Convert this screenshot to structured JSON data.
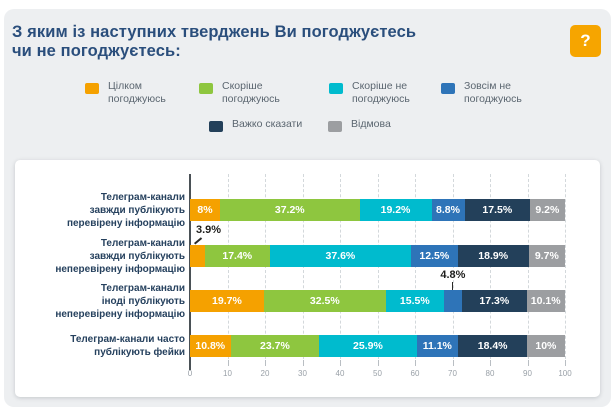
{
  "header": {
    "title": "З яким із наступних тверджень Ви погоджуєтесь\nчи не погоджуєтесь:",
    "help_badge": "?"
  },
  "colors": {
    "accent_orange": "#F5A100",
    "panel_bg": "#EDEFF1",
    "title_navy": "#2A4E7C"
  },
  "chart_data": {
    "type": "bar",
    "orientation": "horizontal",
    "stacked": true,
    "unit": "%",
    "xlim": [
      0,
      100
    ],
    "x_ticks": [
      0,
      10,
      20,
      30,
      40,
      50,
      60,
      70,
      80,
      90,
      100
    ],
    "grid": "dashed-vertical",
    "legend_position": "top",
    "categories": [
      [
        "Телеграм-канали",
        "завжди публікують",
        "перевірену інформацію"
      ],
      [
        "Телеграм-канали",
        "завжди публікують",
        "неперевірену інформацію"
      ],
      [
        "Телеграм-канали",
        "іноді публікують",
        "неперевірену інформацію"
      ],
      [
        "Телеграм-канали часто",
        "публікують фейки"
      ]
    ],
    "series": [
      {
        "name": "Цілком погоджуюсь",
        "color": "#F5A100",
        "values": [
          8,
          3.9,
          19.7,
          10.8
        ]
      },
      {
        "name": "Скоріше погоджуюсь",
        "color": "#8EC63F",
        "values": [
          37.2,
          17.4,
          32.5,
          23.7
        ]
      },
      {
        "name": "Скоріше не погоджуюсь",
        "color": "#00BBCE",
        "values": [
          19.2,
          37.6,
          15.5,
          25.9
        ]
      },
      {
        "name": "Зовсім не погоджуюсь",
        "color": "#2E74B8",
        "values": [
          8.8,
          12.5,
          4.8,
          11.1
        ]
      },
      {
        "name": "Важко сказати",
        "color": "#23405A",
        "values": [
          17.5,
          18.9,
          17.3,
          18.4
        ]
      },
      {
        "name": "Відмова",
        "color": "#9C9EA1",
        "values": [
          9.2,
          9.7,
          10.1,
          10
        ]
      }
    ],
    "callouts": [
      {
        "category": 1,
        "series": 0,
        "label": "3.9%"
      },
      {
        "category": 2,
        "series": 3,
        "label": "4.8%"
      }
    ]
  }
}
